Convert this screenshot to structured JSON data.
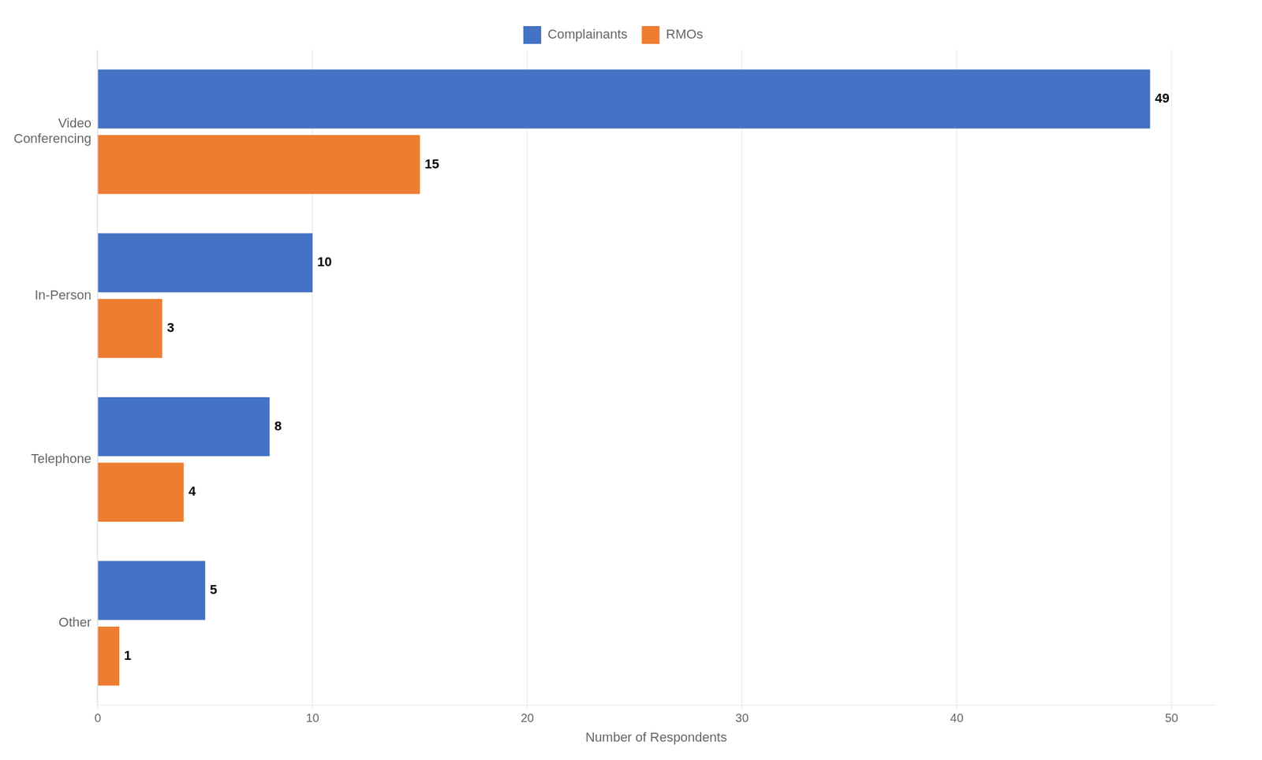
{
  "chart_data": {
    "type": "bar",
    "orientation": "horizontal",
    "categories": [
      "Video\nConferencing",
      "In-Person",
      "Telephone",
      "Other"
    ],
    "series": [
      {
        "name": "Complainants",
        "color": "#4472C4",
        "values": [
          49,
          10,
          8,
          5
        ]
      },
      {
        "name": "RMOs",
        "color": "#ED7D31",
        "values": [
          15,
          3,
          4,
          1
        ]
      }
    ],
    "xlabel": "Number of Respondents",
    "xlim": [
      0,
      52
    ],
    "xticks": [
      0,
      10,
      20,
      30,
      40,
      50
    ],
    "grid": true,
    "legend": "top",
    "data_labels": true
  }
}
